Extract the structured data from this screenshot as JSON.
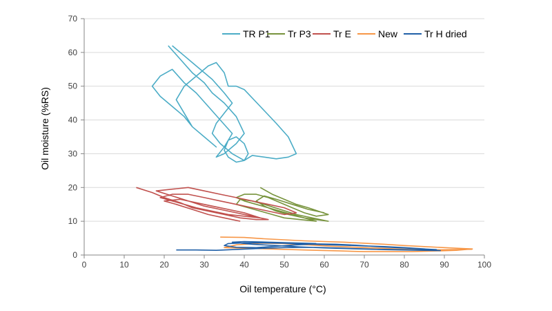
{
  "chart_data": {
    "type": "line",
    "xlabel": "Oil temperature (°C)",
    "ylabel": "Oil moisture (%RS)",
    "xlim": [
      0,
      100
    ],
    "ylim": [
      0,
      70
    ],
    "x_ticks": [
      "0",
      "10",
      "20",
      "30",
      "40",
      "50",
      "60",
      "70",
      "80",
      "90",
      "100"
    ],
    "y_ticks": [
      "0",
      "10",
      "20",
      "30",
      "40",
      "50",
      "60",
      "70"
    ],
    "grid": "horizontal",
    "legend_position": "top-right",
    "series": [
      {
        "name": "TR P1",
        "color": "#4bacc6",
        "points": [
          [
            21,
            62
          ],
          [
            24,
            58
          ],
          [
            27,
            54
          ],
          [
            30,
            51
          ],
          [
            32,
            48
          ],
          [
            35,
            45
          ],
          [
            38,
            41
          ],
          [
            40,
            36
          ],
          [
            38,
            33
          ],
          [
            35,
            30
          ],
          [
            33,
            29
          ],
          [
            35,
            32
          ],
          [
            37,
            36
          ],
          [
            34,
            40
          ],
          [
            31,
            44
          ],
          [
            28,
            48
          ],
          [
            25,
            51
          ],
          [
            22,
            55
          ],
          [
            19,
            53
          ],
          [
            17,
            50
          ],
          [
            19,
            47
          ],
          [
            22,
            44
          ],
          [
            25,
            41
          ],
          [
            27,
            38
          ],
          [
            30,
            35
          ],
          [
            33,
            32
          ],
          [
            30,
            35
          ],
          [
            27,
            38
          ],
          [
            25,
            42
          ],
          [
            23,
            46
          ],
          [
            25,
            50
          ],
          [
            28,
            53
          ],
          [
            31,
            56
          ],
          [
            33,
            57
          ],
          [
            35,
            54
          ],
          [
            36,
            50
          ],
          [
            38,
            50
          ],
          [
            40,
            49
          ],
          [
            44,
            44
          ],
          [
            48,
            39
          ],
          [
            51,
            35
          ],
          [
            53,
            30
          ],
          [
            51,
            29
          ],
          [
            48,
            28.5
          ],
          [
            45,
            29
          ],
          [
            42,
            29.5
          ],
          [
            40,
            28
          ],
          [
            38,
            27.5
          ],
          [
            36,
            29
          ],
          [
            35,
            31
          ],
          [
            36,
            34
          ],
          [
            38,
            35
          ],
          [
            40,
            33
          ],
          [
            41,
            30
          ],
          [
            40,
            28
          ],
          [
            37,
            30
          ],
          [
            34,
            33
          ],
          [
            32,
            36
          ],
          [
            33,
            39
          ],
          [
            35,
            42
          ],
          [
            37,
            45
          ],
          [
            35,
            48
          ],
          [
            32,
            52
          ],
          [
            29,
            55
          ],
          [
            27,
            57
          ],
          [
            25,
            59
          ],
          [
            23,
            61
          ],
          [
            22,
            62
          ]
        ]
      },
      {
        "name": "Tr P3",
        "color": "#77933c",
        "points": [
          [
            44,
            20
          ],
          [
            47,
            18
          ],
          [
            50,
            16.5
          ],
          [
            53,
            15
          ],
          [
            56,
            14
          ],
          [
            59,
            12.8
          ],
          [
            61,
            12
          ],
          [
            58,
            11.5
          ],
          [
            55,
            12.5
          ],
          [
            52,
            14
          ],
          [
            49,
            15.5
          ],
          [
            46,
            17
          ],
          [
            43,
            18
          ],
          [
            40,
            18
          ],
          [
            38,
            17
          ],
          [
            40,
            16
          ],
          [
            43,
            15
          ],
          [
            46,
            14
          ],
          [
            49,
            13
          ],
          [
            52,
            12
          ],
          [
            55,
            11
          ],
          [
            58,
            10.5
          ],
          [
            61,
            10
          ],
          [
            57,
            11
          ],
          [
            53,
            12
          ],
          [
            49,
            13.5
          ],
          [
            45,
            15
          ],
          [
            42,
            16
          ],
          [
            39,
            16.5
          ],
          [
            38,
            15
          ],
          [
            41,
            14
          ],
          [
            44,
            13
          ],
          [
            47,
            12
          ],
          [
            50,
            11
          ],
          [
            54,
            10.5
          ],
          [
            58,
            10
          ],
          [
            55,
            11
          ],
          [
            51,
            12
          ],
          [
            48,
            13
          ],
          [
            45,
            14.5
          ],
          [
            43,
            16
          ],
          [
            45,
            17.5
          ],
          [
            48,
            16.5
          ],
          [
            52,
            15
          ],
          [
            56,
            13.5
          ],
          [
            60,
            12.5
          ]
        ]
      },
      {
        "name": "Tr E",
        "color": "#c0504d",
        "points": [
          [
            13,
            20
          ],
          [
            17,
            18.5
          ],
          [
            20,
            17
          ],
          [
            24,
            15.5
          ],
          [
            27,
            14
          ],
          [
            31,
            13
          ],
          [
            35,
            12
          ],
          [
            39,
            11
          ],
          [
            43,
            10.5
          ],
          [
            46,
            10.5
          ],
          [
            42,
            11.5
          ],
          [
            38,
            12.5
          ],
          [
            34,
            13.5
          ],
          [
            30,
            14.5
          ],
          [
            26,
            16
          ],
          [
            22,
            17.5
          ],
          [
            18,
            19
          ],
          [
            22,
            19.5
          ],
          [
            26,
            20
          ],
          [
            30,
            19
          ],
          [
            34,
            18
          ],
          [
            38,
            17
          ],
          [
            42,
            16
          ],
          [
            46,
            15
          ],
          [
            50,
            14
          ],
          [
            53,
            12.5
          ],
          [
            50,
            12
          ],
          [
            46,
            13
          ],
          [
            42,
            14
          ],
          [
            38,
            15
          ],
          [
            34,
            16
          ],
          [
            30,
            17
          ],
          [
            26,
            18
          ],
          [
            22,
            18
          ],
          [
            19,
            17
          ],
          [
            22,
            16
          ],
          [
            25,
            15
          ],
          [
            28,
            14
          ],
          [
            32,
            13
          ],
          [
            36,
            12
          ],
          [
            40,
            11.5
          ],
          [
            44,
            11
          ],
          [
            40,
            12.5
          ],
          [
            36,
            13.5
          ],
          [
            32,
            14.5
          ],
          [
            28,
            15.5
          ],
          [
            24,
            16.5
          ],
          [
            20,
            16
          ],
          [
            23,
            15
          ],
          [
            27,
            13.5
          ],
          [
            31,
            12
          ],
          [
            35,
            11
          ],
          [
            39,
            10
          ]
        ]
      },
      {
        "name": "New",
        "color": "#f79646",
        "points": [
          [
            34,
            5.3
          ],
          [
            40,
            5.2
          ],
          [
            45,
            4.8
          ],
          [
            50,
            4.5
          ],
          [
            55,
            4.2
          ],
          [
            60,
            4
          ],
          [
            65,
            3.8
          ],
          [
            70,
            3.5
          ],
          [
            75,
            3.2
          ],
          [
            80,
            2.8
          ],
          [
            85,
            2.5
          ],
          [
            90,
            2.2
          ],
          [
            95,
            1.9
          ],
          [
            97,
            1.8
          ],
          [
            93,
            1.4
          ],
          [
            88,
            1.2
          ],
          [
            82,
            1
          ],
          [
            76,
            1
          ],
          [
            70,
            1
          ],
          [
            64,
            1.2
          ],
          [
            58,
            1.4
          ],
          [
            52,
            1.6
          ],
          [
            46,
            1.8
          ],
          [
            40,
            2
          ],
          [
            35,
            2.2
          ],
          [
            38,
            3
          ],
          [
            44,
            3.5
          ],
          [
            50,
            3.4
          ],
          [
            56,
            3
          ],
          [
            62,
            2.6
          ],
          [
            68,
            2.3
          ],
          [
            74,
            2
          ],
          [
            80,
            1.7
          ],
          [
            86,
            1.5
          ],
          [
            92,
            1.6
          ],
          [
            97,
            1.7
          ]
        ]
      },
      {
        "name": "Tr H dried",
        "color": "#1f5fa7",
        "points": [
          [
            23,
            1.5
          ],
          [
            28,
            1.5
          ],
          [
            33,
            1.4
          ],
          [
            37,
            1.6
          ],
          [
            41,
            1.8
          ],
          [
            45,
            2
          ],
          [
            50,
            2.2
          ],
          [
            55,
            2.3
          ],
          [
            60,
            2.2
          ],
          [
            65,
            2
          ],
          [
            70,
            1.8
          ],
          [
            75,
            1.6
          ],
          [
            80,
            1.5
          ],
          [
            85,
            1.4
          ],
          [
            89,
            1.3
          ],
          [
            85,
            1.8
          ],
          [
            80,
            2.2
          ],
          [
            75,
            2.5
          ],
          [
            70,
            2.7
          ],
          [
            65,
            2.9
          ],
          [
            60,
            3.1
          ],
          [
            55,
            3.3
          ],
          [
            50,
            3.5
          ],
          [
            45,
            3.6
          ],
          [
            40,
            3.6
          ],
          [
            36,
            3.4
          ],
          [
            35,
            2.8
          ],
          [
            38,
            2.3
          ],
          [
            43,
            2.2
          ],
          [
            48,
            2.6
          ],
          [
            53,
            3
          ],
          [
            58,
            3.3
          ],
          [
            63,
            3.2
          ],
          [
            68,
            2.9
          ],
          [
            73,
            2.5
          ],
          [
            78,
            2.2
          ],
          [
            83,
            1.9
          ],
          [
            88,
            1.6
          ],
          [
            84,
            1.5
          ],
          [
            78,
            1.6
          ],
          [
            72,
            1.7
          ],
          [
            66,
            1.9
          ],
          [
            60,
            2.1
          ],
          [
            54,
            2.4
          ],
          [
            48,
            2.8
          ],
          [
            42,
            3.2
          ],
          [
            37,
            3.8
          ],
          [
            40,
            4
          ],
          [
            46,
            3.8
          ],
          [
            52,
            3.6
          ],
          [
            58,
            3.4
          ]
        ]
      }
    ]
  }
}
